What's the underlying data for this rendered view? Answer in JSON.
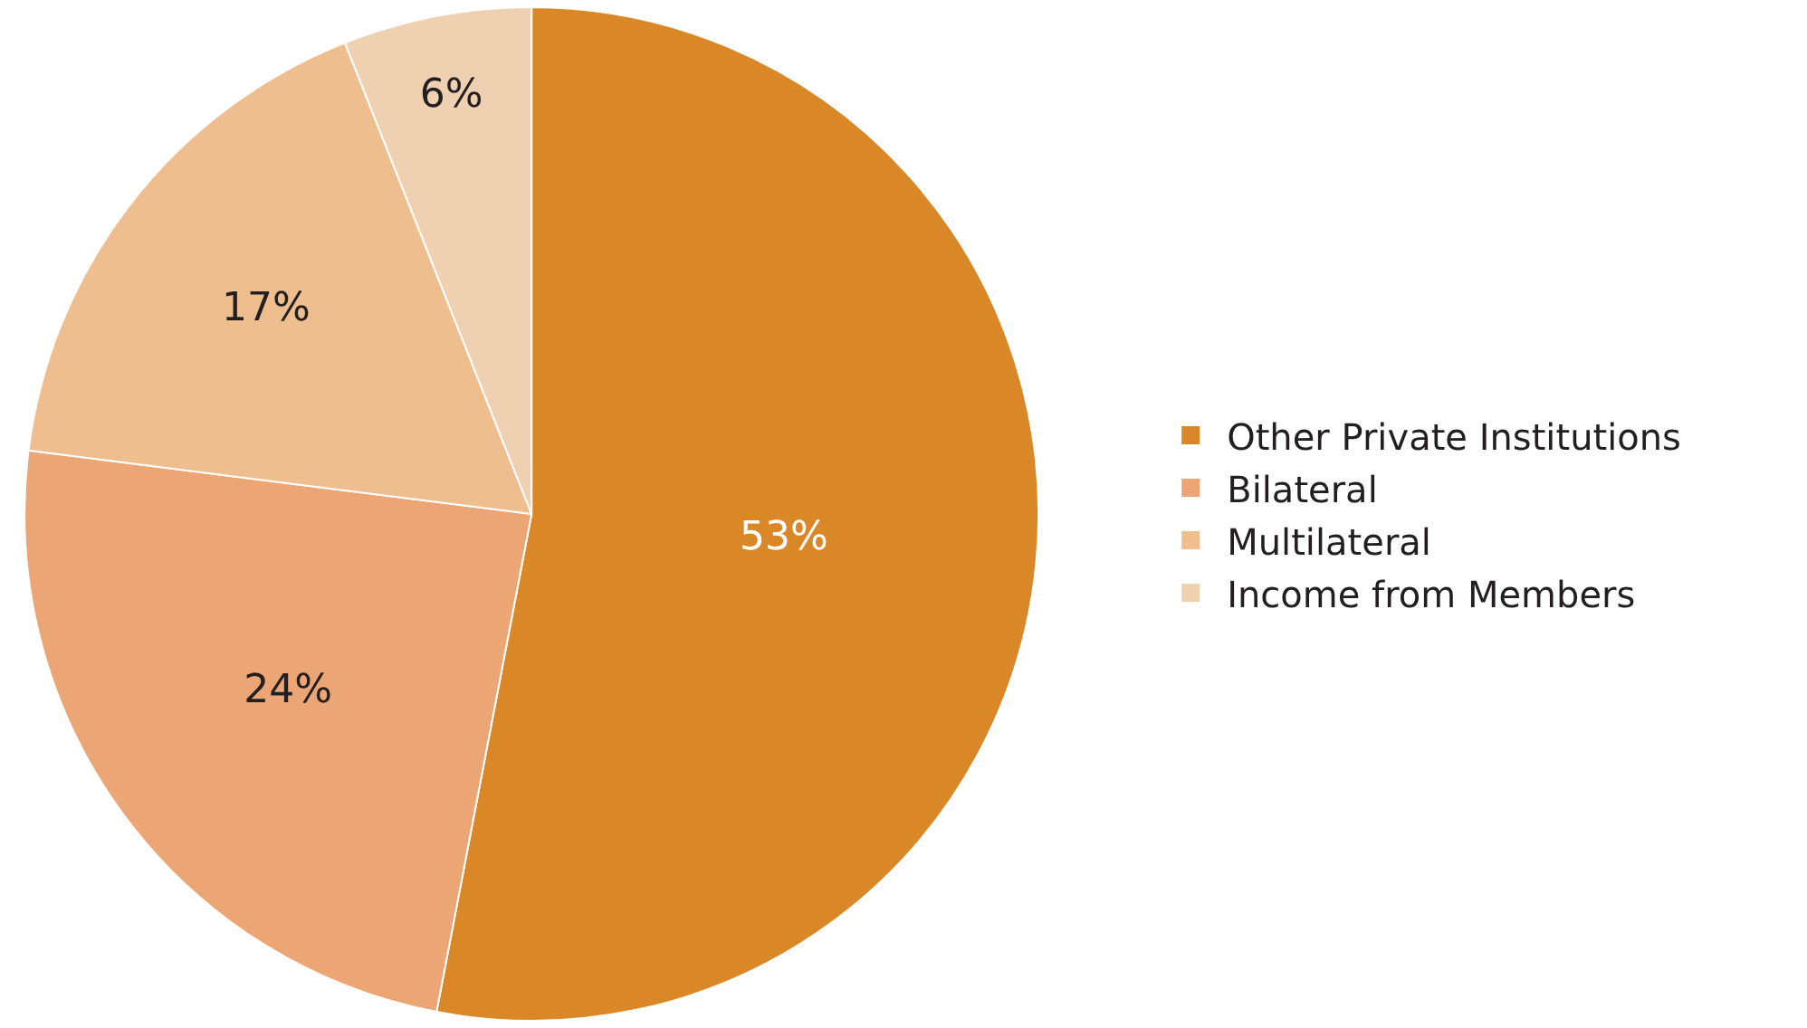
{
  "chart_data": {
    "type": "pie",
    "categories": [
      "Other Private Institutions",
      "Bilateral",
      "Multilateral",
      "Income from Members"
    ],
    "values": [
      53,
      24,
      17,
      6
    ],
    "colors": [
      "#d98727",
      "#eca574",
      "#eebe8f",
      "#efd0b0"
    ],
    "value_labels": [
      "53%",
      "24%",
      "17%",
      "6%"
    ],
    "legend": "right"
  }
}
